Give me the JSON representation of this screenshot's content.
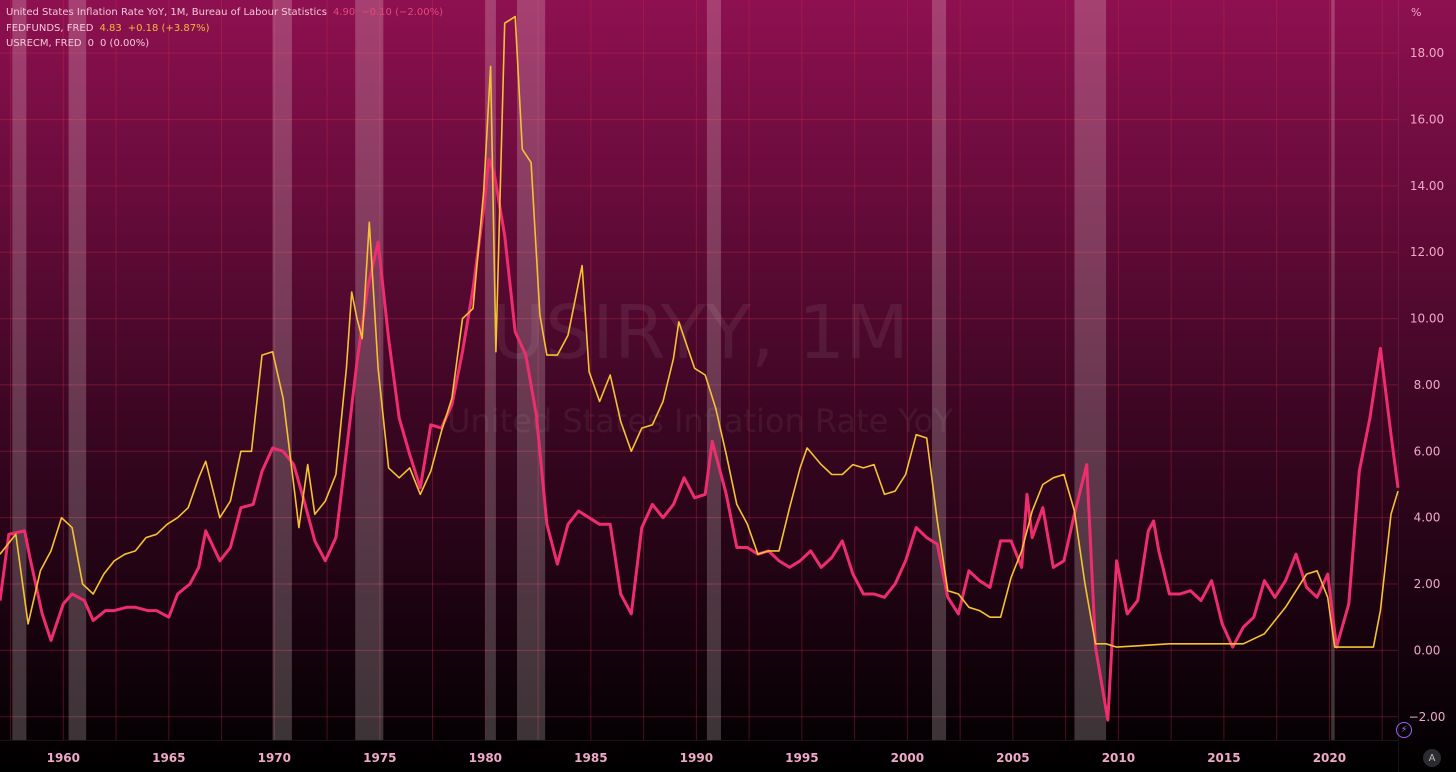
{
  "legend": [
    {
      "label": "United States Inflation Rate YoY, 1M, Bureau of Labour Statistics",
      "value": "4.90",
      "change": "−0.10 (−2.00%)",
      "label_color": "#f4c8da",
      "value_color": "#e8457a"
    },
    {
      "label": "FEDFUNDS, FRED",
      "value": "4.83",
      "change": "+0.18 (+3.87%)",
      "label_color": "#f4c8da",
      "value_color": "#f2b83a"
    },
    {
      "label": "USRECM, FRED",
      "value": "0",
      "change": "0 (0.00%)",
      "label_color": "#f4c8da",
      "value_color": "#f4c8da"
    }
  ],
  "unit": "%",
  "watermark": {
    "symbol": "USIRYY, 1M",
    "name": "United States Inflation Rate YoY"
  },
  "corner_button": "A",
  "lightning_icon": "⚡",
  "colors": {
    "inflation": "#ee2d6e",
    "fedfunds": "#f5c233",
    "recession": "rgba(255,235,235,0.22)",
    "grid": "rgba(205,45,75,0.35)",
    "bg_top": "#8e1050",
    "bg_bottom": "#000000",
    "axis_text": "#f0a8c8"
  },
  "chart_data": {
    "type": "line",
    "x_axis": {
      "type": "date",
      "range": [
        "1957-01",
        "2023-04"
      ],
      "ticks": [
        "1960",
        "1965",
        "1970",
        "1975",
        "1980",
        "1985",
        "1990",
        "1995",
        "2000",
        "2005",
        "2010",
        "2015",
        "2020"
      ]
    },
    "y_axis": {
      "range": [
        -2.7,
        19.6
      ],
      "position": "right",
      "ticks": [
        -2,
        0,
        2,
        4,
        6,
        8,
        10,
        12,
        14,
        16,
        18
      ],
      "tick_labels": [
        "−2.00",
        "0.00",
        "2.00",
        "4.00",
        "6.00",
        "8.00",
        "10.00",
        "12.00",
        "14.00",
        "16.00",
        "18.00"
      ]
    },
    "grid": true,
    "legend_position": "top-left",
    "series": [
      {
        "name": "United States Inflation Rate YoY",
        "color": "#ee2d6e",
        "points": [
          [
            "1957-01",
            1.5
          ],
          [
            "1957-06",
            3.5
          ],
          [
            "1958-03",
            3.6
          ],
          [
            "1958-06",
            2.8
          ],
          [
            "1959-01",
            1.1
          ],
          [
            "1959-06",
            0.3
          ],
          [
            "1960-01",
            1.4
          ],
          [
            "1960-06",
            1.7
          ],
          [
            "1961-01",
            1.5
          ],
          [
            "1961-06",
            0.9
          ],
          [
            "1962-01",
            1.2
          ],
          [
            "1962-06",
            1.2
          ],
          [
            "1963-01",
            1.3
          ],
          [
            "1963-06",
            1.3
          ],
          [
            "1964-01",
            1.2
          ],
          [
            "1964-06",
            1.2
          ],
          [
            "1965-01",
            1.0
          ],
          [
            "1965-06",
            1.7
          ],
          [
            "1966-01",
            2.0
          ],
          [
            "1966-06",
            2.5
          ],
          [
            "1966-10",
            3.6
          ],
          [
            "1967-06",
            2.7
          ],
          [
            "1967-12",
            3.1
          ],
          [
            "1968-06",
            4.3
          ],
          [
            "1969-01",
            4.4
          ],
          [
            "1969-06",
            5.4
          ],
          [
            "1969-12",
            6.1
          ],
          [
            "1970-06",
            6.0
          ],
          [
            "1970-12",
            5.6
          ],
          [
            "1971-06",
            4.5
          ],
          [
            "1971-12",
            3.3
          ],
          [
            "1972-06",
            2.7
          ],
          [
            "1972-12",
            3.4
          ],
          [
            "1973-06",
            6.0
          ],
          [
            "1973-12",
            8.7
          ],
          [
            "1974-06",
            10.9
          ],
          [
            "1974-12",
            12.3
          ],
          [
            "1975-06",
            9.4
          ],
          [
            "1975-12",
            7.0
          ],
          [
            "1976-06",
            5.9
          ],
          [
            "1976-12",
            4.9
          ],
          [
            "1977-06",
            6.8
          ],
          [
            "1977-12",
            6.7
          ],
          [
            "1978-06",
            7.4
          ],
          [
            "1978-12",
            9.0
          ],
          [
            "1979-06",
            10.9
          ],
          [
            "1979-12",
            13.3
          ],
          [
            "1980-03",
            14.8
          ],
          [
            "1980-06",
            14.4
          ],
          [
            "1980-12",
            12.5
          ],
          [
            "1981-06",
            9.6
          ],
          [
            "1981-12",
            8.9
          ],
          [
            "1982-06",
            7.1
          ],
          [
            "1982-12",
            3.8
          ],
          [
            "1983-06",
            2.6
          ],
          [
            "1983-12",
            3.8
          ],
          [
            "1984-06",
            4.2
          ],
          [
            "1984-12",
            4.0
          ],
          [
            "1985-06",
            3.8
          ],
          [
            "1985-12",
            3.8
          ],
          [
            "1986-06",
            1.7
          ],
          [
            "1986-12",
            1.1
          ],
          [
            "1987-06",
            3.7
          ],
          [
            "1987-12",
            4.4
          ],
          [
            "1988-06",
            4.0
          ],
          [
            "1988-12",
            4.4
          ],
          [
            "1989-06",
            5.2
          ],
          [
            "1989-12",
            4.6
          ],
          [
            "1990-06",
            4.7
          ],
          [
            "1990-10",
            6.3
          ],
          [
            "1991-06",
            4.7
          ],
          [
            "1991-12",
            3.1
          ],
          [
            "1992-06",
            3.1
          ],
          [
            "1992-12",
            2.9
          ],
          [
            "1993-06",
            3.0
          ],
          [
            "1993-12",
            2.7
          ],
          [
            "1994-06",
            2.5
          ],
          [
            "1994-12",
            2.7
          ],
          [
            "1995-06",
            3.0
          ],
          [
            "1995-12",
            2.5
          ],
          [
            "1996-06",
            2.8
          ],
          [
            "1996-12",
            3.3
          ],
          [
            "1997-06",
            2.3
          ],
          [
            "1997-12",
            1.7
          ],
          [
            "1998-06",
            1.7
          ],
          [
            "1998-12",
            1.6
          ],
          [
            "1999-06",
            2.0
          ],
          [
            "1999-12",
            2.7
          ],
          [
            "2000-06",
            3.7
          ],
          [
            "2000-12",
            3.4
          ],
          [
            "2001-06",
            3.2
          ],
          [
            "2001-12",
            1.6
          ],
          [
            "2002-06",
            1.1
          ],
          [
            "2002-12",
            2.4
          ],
          [
            "2003-06",
            2.1
          ],
          [
            "2003-12",
            1.9
          ],
          [
            "2004-06",
            3.3
          ],
          [
            "2004-12",
            3.3
          ],
          [
            "2005-06",
            2.5
          ],
          [
            "2005-09",
            4.7
          ],
          [
            "2005-12",
            3.4
          ],
          [
            "2006-06",
            4.3
          ],
          [
            "2006-12",
            2.5
          ],
          [
            "2007-06",
            2.7
          ],
          [
            "2007-12",
            4.1
          ],
          [
            "2008-07",
            5.6
          ],
          [
            "2008-12",
            0.1
          ],
          [
            "2009-07",
            -2.1
          ],
          [
            "2009-12",
            2.7
          ],
          [
            "2010-06",
            1.1
          ],
          [
            "2010-12",
            1.5
          ],
          [
            "2011-06",
            3.6
          ],
          [
            "2011-09",
            3.9
          ],
          [
            "2011-12",
            3.0
          ],
          [
            "2012-06",
            1.7
          ],
          [
            "2012-12",
            1.7
          ],
          [
            "2013-06",
            1.8
          ],
          [
            "2013-12",
            1.5
          ],
          [
            "2014-06",
            2.1
          ],
          [
            "2014-12",
            0.8
          ],
          [
            "2015-06",
            0.1
          ],
          [
            "2015-12",
            0.7
          ],
          [
            "2016-06",
            1.0
          ],
          [
            "2016-12",
            2.1
          ],
          [
            "2017-06",
            1.6
          ],
          [
            "2017-12",
            2.1
          ],
          [
            "2018-06",
            2.9
          ],
          [
            "2018-12",
            1.9
          ],
          [
            "2019-06",
            1.6
          ],
          [
            "2019-12",
            2.3
          ],
          [
            "2020-05",
            0.1
          ],
          [
            "2020-12",
            1.4
          ],
          [
            "2021-06",
            5.4
          ],
          [
            "2021-12",
            7.0
          ],
          [
            "2022-06",
            9.1
          ],
          [
            "2022-12",
            6.5
          ],
          [
            "2023-04",
            4.9
          ]
        ]
      },
      {
        "name": "FEDFUNDS",
        "color": "#f5c233",
        "points": [
          [
            "1957-01",
            2.9
          ],
          [
            "1957-10",
            3.5
          ],
          [
            "1958-05",
            0.8
          ],
          [
            "1958-12",
            2.4
          ],
          [
            "1959-06",
            3.0
          ],
          [
            "1959-12",
            4.0
          ],
          [
            "1960-06",
            3.7
          ],
          [
            "1960-12",
            2.0
          ],
          [
            "1961-06",
            1.7
          ],
          [
            "1961-12",
            2.3
          ],
          [
            "1962-06",
            2.7
          ],
          [
            "1962-12",
            2.9
          ],
          [
            "1963-06",
            3.0
          ],
          [
            "1963-12",
            3.4
          ],
          [
            "1964-06",
            3.5
          ],
          [
            "1964-12",
            3.8
          ],
          [
            "1965-06",
            4.0
          ],
          [
            "1965-12",
            4.3
          ],
          [
            "1966-06",
            5.2
          ],
          [
            "1966-10",
            5.7
          ],
          [
            "1967-06",
            4.0
          ],
          [
            "1967-12",
            4.5
          ],
          [
            "1968-06",
            6.0
          ],
          [
            "1968-12",
            6.0
          ],
          [
            "1969-06",
            8.9
          ],
          [
            "1969-12",
            9.0
          ],
          [
            "1970-06",
            7.6
          ],
          [
            "1970-12",
            5.0
          ],
          [
            "1971-03",
            3.7
          ],
          [
            "1971-08",
            5.6
          ],
          [
            "1971-12",
            4.1
          ],
          [
            "1972-06",
            4.5
          ],
          [
            "1972-12",
            5.3
          ],
          [
            "1973-06",
            8.5
          ],
          [
            "1973-09",
            10.8
          ],
          [
            "1973-12",
            10.0
          ],
          [
            "1974-03",
            9.4
          ],
          [
            "1974-07",
            12.9
          ],
          [
            "1974-12",
            8.5
          ],
          [
            "1975-06",
            5.5
          ],
          [
            "1975-12",
            5.2
          ],
          [
            "1976-06",
            5.5
          ],
          [
            "1976-12",
            4.7
          ],
          [
            "1977-06",
            5.4
          ],
          [
            "1977-12",
            6.6
          ],
          [
            "1978-06",
            7.6
          ],
          [
            "1978-12",
            10.0
          ],
          [
            "1979-06",
            10.3
          ],
          [
            "1979-12",
            13.8
          ],
          [
            "1980-04",
            17.6
          ],
          [
            "1980-07",
            9.0
          ],
          [
            "1980-12",
            18.9
          ],
          [
            "1981-06",
            19.1
          ],
          [
            "1981-10",
            15.1
          ],
          [
            "1982-03",
            14.7
          ],
          [
            "1982-08",
            10.1
          ],
          [
            "1982-12",
            8.9
          ],
          [
            "1983-06",
            8.9
          ],
          [
            "1983-12",
            9.5
          ],
          [
            "1984-08",
            11.6
          ],
          [
            "1984-12",
            8.4
          ],
          [
            "1985-06",
            7.5
          ],
          [
            "1985-12",
            8.3
          ],
          [
            "1986-06",
            6.9
          ],
          [
            "1986-12",
            6.0
          ],
          [
            "1987-06",
            6.7
          ],
          [
            "1987-12",
            6.8
          ],
          [
            "1988-06",
            7.5
          ],
          [
            "1988-12",
            8.8
          ],
          [
            "1989-03",
            9.9
          ],
          [
            "1989-12",
            8.5
          ],
          [
            "1990-06",
            8.3
          ],
          [
            "1990-12",
            7.3
          ],
          [
            "1991-06",
            5.9
          ],
          [
            "1991-12",
            4.4
          ],
          [
            "1992-06",
            3.8
          ],
          [
            "1992-12",
            2.9
          ],
          [
            "1993-06",
            3.0
          ],
          [
            "1993-12",
            3.0
          ],
          [
            "1994-06",
            4.3
          ],
          [
            "1994-12",
            5.5
          ],
          [
            "1995-04",
            6.1
          ],
          [
            "1995-12",
            5.6
          ],
          [
            "1996-06",
            5.3
          ],
          [
            "1996-12",
            5.3
          ],
          [
            "1997-06",
            5.6
          ],
          [
            "1997-12",
            5.5
          ],
          [
            "1998-06",
            5.6
          ],
          [
            "1998-12",
            4.7
          ],
          [
            "1999-06",
            4.8
          ],
          [
            "1999-12",
            5.3
          ],
          [
            "2000-06",
            6.5
          ],
          [
            "2000-12",
            6.4
          ],
          [
            "2001-06",
            3.9
          ],
          [
            "2001-12",
            1.8
          ],
          [
            "2002-06",
            1.7
          ],
          [
            "2002-12",
            1.3
          ],
          [
            "2003-06",
            1.2
          ],
          [
            "2003-12",
            1.0
          ],
          [
            "2004-06",
            1.0
          ],
          [
            "2004-12",
            2.2
          ],
          [
            "2005-06",
            3.0
          ],
          [
            "2005-12",
            4.2
          ],
          [
            "2006-06",
            5.0
          ],
          [
            "2006-12",
            5.2
          ],
          [
            "2007-06",
            5.3
          ],
          [
            "2007-12",
            4.2
          ],
          [
            "2008-06",
            2.0
          ],
          [
            "2008-12",
            0.2
          ],
          [
            "2009-06",
            0.2
          ],
          [
            "2009-12",
            0.1
          ],
          [
            "2012-06",
            0.2
          ],
          [
            "2015-12",
            0.2
          ],
          [
            "2016-12",
            0.5
          ],
          [
            "2017-12",
            1.3
          ],
          [
            "2018-12",
            2.3
          ],
          [
            "2019-06",
            2.4
          ],
          [
            "2019-12",
            1.6
          ],
          [
            "2020-04",
            0.1
          ],
          [
            "2022-02",
            0.1
          ],
          [
            "2022-06",
            1.2
          ],
          [
            "2022-12",
            4.1
          ],
          [
            "2023-04",
            4.8
          ]
        ]
      },
      {
        "name": "USRECM",
        "type": "recession-bands",
        "bands": [
          [
            "1957-08",
            "1958-04"
          ],
          [
            "1960-04",
            "1961-02"
          ],
          [
            "1969-12",
            "1970-11"
          ],
          [
            "1973-11",
            "1975-03"
          ],
          [
            "1980-01",
            "1980-07"
          ],
          [
            "1981-07",
            "1982-11"
          ],
          [
            "1990-07",
            "1991-03"
          ],
          [
            "2001-03",
            "2001-11"
          ],
          [
            "2007-12",
            "2009-06"
          ],
          [
            "2020-02",
            "2020-04"
          ]
        ]
      }
    ]
  }
}
